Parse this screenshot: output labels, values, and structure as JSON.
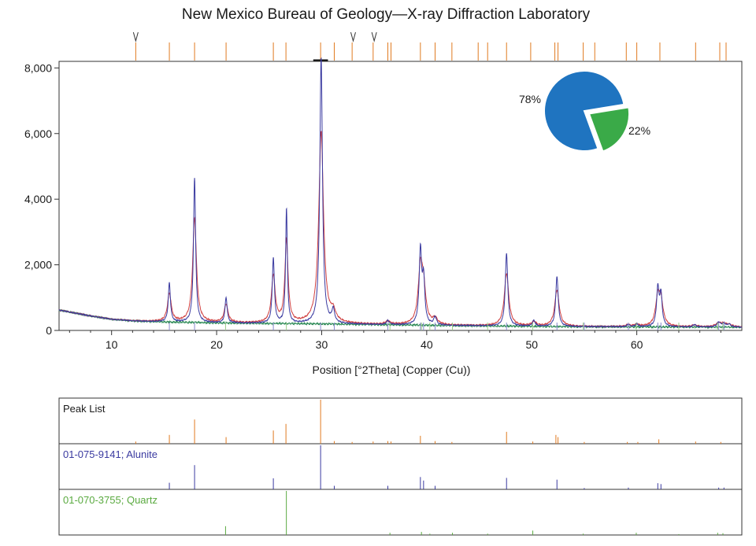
{
  "chart_data": {
    "type": "line",
    "title": "New Mexico Bureau of Geology—X-ray Diffraction Laboratory",
    "xlabel": "Position [°2Theta] (Copper (Cu))",
    "ylabel": "",
    "xlim": [
      5,
      70
    ],
    "ylim": [
      0,
      8200
    ],
    "x_ticks": [
      10,
      20,
      30,
      40,
      50,
      60
    ],
    "y_ticks": [
      0,
      2000,
      4000,
      6000,
      8000
    ],
    "x_tick_labels": [
      "10",
      "20",
      "30",
      "40",
      "50",
      "60"
    ],
    "y_tick_labels": [
      "0",
      "2,000",
      "4,000",
      "6,000",
      "8,000"
    ],
    "grid": false,
    "colors": {
      "observed": "#3a3aa0",
      "calculated": "#d04040",
      "background": "#2e8b57",
      "peak_list": "#e07a20",
      "alunite": "#3a3aa0",
      "quartz": "#5aaa40",
      "pie_blue": "#1f74c0",
      "pie_green": "#3aaa48"
    },
    "background_curve": {
      "x": [
        5,
        6,
        8,
        10,
        12,
        15,
        20,
        25,
        30,
        35,
        40,
        45,
        50,
        55,
        60,
        65,
        70
      ],
      "y": [
        620,
        560,
        440,
        340,
        290,
        260,
        230,
        215,
        200,
        180,
        160,
        140,
        125,
        115,
        110,
        105,
        100
      ]
    },
    "peaks": [
      {
        "x": 15.5,
        "y": 1450,
        "w": 0.12
      },
      {
        "x": 17.9,
        "y": 4650,
        "w": 0.12
      },
      {
        "x": 20.9,
        "y": 1000,
        "w": 0.12
      },
      {
        "x": 25.4,
        "y": 2200,
        "w": 0.12
      },
      {
        "x": 26.65,
        "y": 3700,
        "w": 0.1
      },
      {
        "x": 29.95,
        "y": 8300,
        "w": 0.15
      },
      {
        "x": 31.1,
        "y": 600,
        "w": 0.15
      },
      {
        "x": 36.3,
        "y": 300,
        "w": 0.15
      },
      {
        "x": 39.4,
        "y": 2400,
        "w": 0.14
      },
      {
        "x": 39.7,
        "y": 1500,
        "w": 0.14
      },
      {
        "x": 40.8,
        "y": 400,
        "w": 0.15
      },
      {
        "x": 42.4,
        "y": 150,
        "w": 0.15
      },
      {
        "x": 47.6,
        "y": 2350,
        "w": 0.14
      },
      {
        "x": 50.2,
        "y": 300,
        "w": 0.15
      },
      {
        "x": 52.4,
        "y": 1650,
        "w": 0.14
      },
      {
        "x": 55.0,
        "y": 120,
        "w": 0.15
      },
      {
        "x": 57.5,
        "y": 120,
        "w": 0.15
      },
      {
        "x": 59.2,
        "y": 180,
        "w": 0.15
      },
      {
        "x": 60.0,
        "y": 200,
        "w": 0.15
      },
      {
        "x": 62.0,
        "y": 1250,
        "w": 0.14
      },
      {
        "x": 62.3,
        "y": 1050,
        "w": 0.14
      },
      {
        "x": 65.5,
        "y": 180,
        "w": 0.15
      },
      {
        "x": 67.8,
        "y": 250,
        "w": 0.2
      },
      {
        "x": 68.3,
        "y": 200,
        "w": 0.2
      },
      {
        "x": 68.8,
        "y": 180,
        "w": 0.2
      }
    ],
    "top_markers": {
      "x": [
        12.3,
        15.5,
        17.9,
        20.9,
        25.4,
        26.6,
        29.9,
        31.2,
        32.9,
        34.9,
        36.3,
        36.6,
        39.4,
        40.8,
        42.4,
        44.9,
        45.8,
        47.6,
        49.9,
        52.2,
        52.5,
        54.9,
        56.0,
        59.0,
        60.0,
        62.2,
        65.6,
        67.9,
        68.5
      ],
      "caret_x": [
        12.3,
        33.0,
        35.0
      ]
    },
    "peak_list_panel": {
      "label": "Peak List",
      "x": [
        12.3,
        15.5,
        17.9,
        20.9,
        25.4,
        26.6,
        29.9,
        31.2,
        32.9,
        34.9,
        36.3,
        36.6,
        39.4,
        40.8,
        42.4,
        47.6,
        50.1,
        52.3,
        52.5,
        55.0,
        59.1,
        60.1,
        62.1,
        65.6,
        68.0
      ],
      "h": [
        0.05,
        0.2,
        0.55,
        0.15,
        0.3,
        0.45,
        1.0,
        0.06,
        0.04,
        0.05,
        0.06,
        0.05,
        0.18,
        0.06,
        0.04,
        0.27,
        0.05,
        0.2,
        0.15,
        0.04,
        0.04,
        0.04,
        0.1,
        0.05,
        0.04
      ]
    },
    "alunite_panel": {
      "label": "01-075-9141; Alunite",
      "x": [
        15.5,
        17.9,
        25.4,
        29.9,
        31.2,
        36.3,
        39.4,
        39.7,
        40.8,
        47.6,
        52.4,
        55.0,
        59.2,
        62.0,
        62.3,
        67.8,
        68.3
      ],
      "h": [
        0.15,
        0.55,
        0.25,
        1.0,
        0.08,
        0.08,
        0.28,
        0.2,
        0.08,
        0.26,
        0.22,
        0.03,
        0.04,
        0.14,
        0.12,
        0.04,
        0.04
      ]
    },
    "quartz_panel": {
      "label": "01-070-3755; Quartz",
      "x": [
        20.85,
        26.64,
        36.5,
        39.5,
        40.3,
        42.45,
        45.8,
        50.1,
        54.9,
        59.95,
        64.0,
        67.7,
        68.2
      ],
      "h": [
        0.2,
        1.0,
        0.05,
        0.07,
        0.03,
        0.05,
        0.03,
        0.1,
        0.03,
        0.05,
        0.02,
        0.05,
        0.04
      ]
    },
    "pie": {
      "values": [
        78,
        22
      ],
      "labels": [
        "78%",
        "22%"
      ]
    }
  }
}
